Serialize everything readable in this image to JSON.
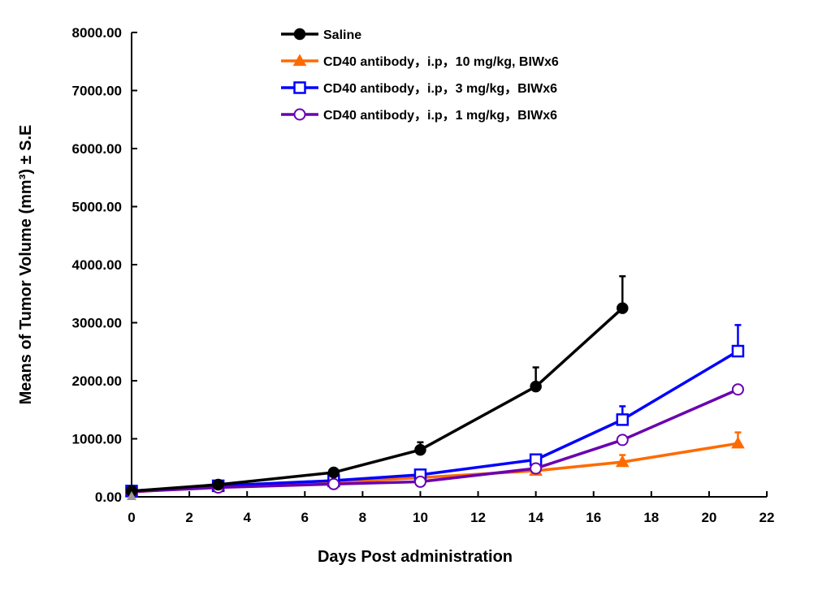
{
  "chart_data": {
    "type": "line",
    "xlabel": "Days Post administration",
    "ylabel": "Means of Tumor Volume (mm³) ± S.E",
    "xlim": [
      0,
      22
    ],
    "ylim": [
      0,
      8000
    ],
    "xticks": [
      "0",
      "2",
      "4",
      "6",
      "8",
      "10",
      "12",
      "14",
      "16",
      "18",
      "20",
      "22"
    ],
    "yticks": [
      "0.00",
      "1000.00",
      "2000.00",
      "3000.00",
      "4000.00",
      "5000.00",
      "6000.00",
      "7000.00",
      "8000.00"
    ],
    "grid": false,
    "legend_position": "top",
    "series": [
      {
        "name": "Saline",
        "color": "#000000",
        "marker": "filled-circle",
        "x": [
          0,
          3,
          7,
          10,
          14,
          17
        ],
        "y": [
          100,
          210,
          420,
          810,
          1900,
          3250
        ],
        "error": [
          0,
          0,
          0,
          130,
          330,
          550
        ]
      },
      {
        "name": "CD40 antibody，i.p，10 mg/kg, BIWx6",
        "color": "#ff6a00",
        "marker": "filled-triangle",
        "x": [
          0,
          3,
          7,
          10,
          14,
          17,
          21
        ],
        "y": [
          80,
          190,
          250,
          330,
          450,
          600,
          920
        ],
        "error": [
          0,
          0,
          0,
          0,
          0,
          120,
          190
        ]
      },
      {
        "name": "CD40 antibody，i.p，3 mg/kg，BIWx6",
        "color": "#0000ff",
        "marker": "open-square",
        "x": [
          0,
          3,
          7,
          10,
          14,
          17,
          21
        ],
        "y": [
          100,
          190,
          280,
          380,
          640,
          1330,
          2510
        ],
        "error": [
          0,
          0,
          0,
          0,
          0,
          230,
          450
        ]
      },
      {
        "name": "CD40 antibody，i.p，1 mg/kg，BIWx6",
        "color": "#6a00b0",
        "marker": "open-circle",
        "x": [
          0,
          3,
          7,
          10,
          14,
          17,
          21
        ],
        "y": [
          90,
          160,
          220,
          260,
          490,
          980,
          1850
        ],
        "error": [
          0,
          0,
          0,
          0,
          0,
          0,
          0
        ]
      }
    ]
  }
}
